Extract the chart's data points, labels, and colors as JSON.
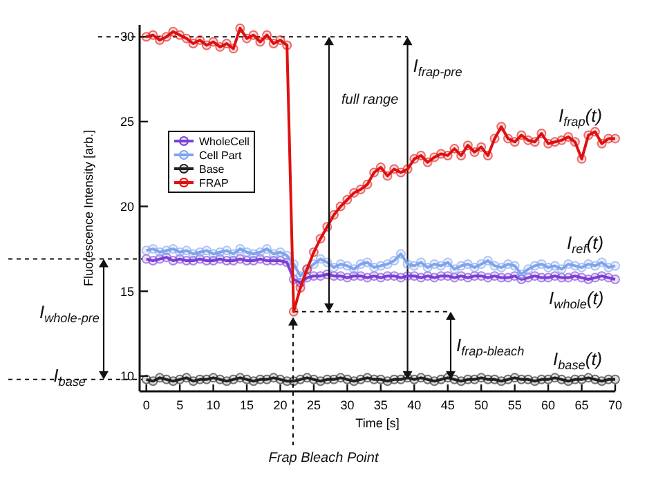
{
  "chart_data": {
    "type": "line",
    "xlabel": "Time [s]",
    "ylabel": "Fluorescence Intensity [arb.]",
    "x": [
      0,
      1,
      2,
      3,
      4,
      5,
      6,
      7,
      8,
      9,
      10,
      11,
      12,
      13,
      14,
      15,
      16,
      17,
      18,
      19,
      20,
      21,
      22,
      23,
      24,
      25,
      26,
      27,
      28,
      29,
      30,
      31,
      32,
      33,
      34,
      35,
      36,
      37,
      38,
      39,
      40,
      41,
      42,
      43,
      44,
      45,
      46,
      47,
      48,
      49,
      50,
      51,
      52,
      53,
      54,
      55,
      56,
      57,
      58,
      59,
      60,
      61,
      62,
      63,
      64,
      65,
      66,
      67,
      68,
      69,
      70
    ],
    "xlim": [
      -1,
      70
    ],
    "xticks": [
      0,
      5,
      10,
      15,
      20,
      25,
      30,
      35,
      40,
      45,
      50,
      55,
      60,
      65,
      70
    ],
    "ylim": [
      9.1,
      30.7
    ],
    "yticks": [
      10,
      15,
      20,
      25,
      30
    ],
    "series": [
      {
        "name": "WholeCell",
        "color": "#7b3fd6",
        "values": [
          16.9,
          16.8,
          16.9,
          17.0,
          16.8,
          16.9,
          16.8,
          16.8,
          16.9,
          16.8,
          16.8,
          16.9,
          16.8,
          16.8,
          16.9,
          16.8,
          16.8,
          16.9,
          16.8,
          16.8,
          16.8,
          16.7,
          15.7,
          15.5,
          15.8,
          15.9,
          15.9,
          16.0,
          15.9,
          15.9,
          15.8,
          15.9,
          15.9,
          15.8,
          15.9,
          15.8,
          15.9,
          15.9,
          15.8,
          15.9,
          15.9,
          15.8,
          15.9,
          15.8,
          15.9,
          15.9,
          15.8,
          15.9,
          15.8,
          15.9,
          15.9,
          15.8,
          15.9,
          15.8,
          15.8,
          15.9,
          15.7,
          15.8,
          15.9,
          15.8,
          15.8,
          15.9,
          15.8,
          15.8,
          15.9,
          15.8,
          15.7,
          15.8,
          15.9,
          15.8,
          15.7
        ]
      },
      {
        "name": "Cell Part",
        "color": "#7fa4ee",
        "values": [
          17.4,
          17.5,
          17.3,
          17.4,
          17.5,
          17.3,
          17.4,
          17.2,
          17.3,
          17.4,
          17.2,
          17.3,
          17.4,
          17.2,
          17.5,
          17.3,
          17.2,
          17.3,
          17.5,
          17.2,
          17.3,
          17.1,
          16.6,
          15.9,
          16.3,
          16.6,
          16.9,
          16.7,
          16.4,
          16.6,
          16.5,
          16.3,
          16.6,
          16.7,
          16.4,
          16.5,
          16.6,
          16.8,
          17.2,
          16.6,
          16.5,
          16.7,
          16.4,
          16.6,
          16.5,
          16.7,
          16.3,
          16.5,
          16.6,
          16.4,
          16.6,
          16.8,
          16.5,
          16.4,
          16.6,
          16.5,
          16.0,
          16.3,
          16.5,
          16.6,
          16.4,
          16.5,
          16.3,
          16.6,
          16.5,
          16.4,
          16.6,
          16.5,
          16.7,
          16.4,
          16.5
        ]
      },
      {
        "name": "Base",
        "color": "#222222",
        "values": [
          9.8,
          9.7,
          9.9,
          9.8,
          9.7,
          9.8,
          9.9,
          9.7,
          9.8,
          9.8,
          9.9,
          9.8,
          9.7,
          9.8,
          9.9,
          9.8,
          9.7,
          9.8,
          9.8,
          9.9,
          9.8,
          9.7,
          9.7,
          9.8,
          9.9,
          9.8,
          9.7,
          9.8,
          9.8,
          9.9,
          9.8,
          9.7,
          9.8,
          9.9,
          9.8,
          9.8,
          9.7,
          9.8,
          9.8,
          9.9,
          9.8,
          9.9,
          9.8,
          9.7,
          9.8,
          9.9,
          9.8,
          9.7,
          9.8,
          9.8,
          9.9,
          9.8,
          9.8,
          9.7,
          9.8,
          9.9,
          9.8,
          9.8,
          9.7,
          9.8,
          9.8,
          9.9,
          9.8,
          9.7,
          9.8,
          9.8,
          9.9,
          9.8,
          9.7,
          9.8,
          9.8
        ]
      },
      {
        "name": "FRAP",
        "color": "#e01010",
        "values": [
          30.0,
          30.1,
          29.8,
          30.0,
          30.3,
          30.1,
          29.9,
          29.6,
          29.8,
          29.5,
          29.7,
          29.4,
          29.6,
          29.3,
          30.5,
          29.9,
          30.1,
          29.7,
          30.1,
          29.6,
          29.8,
          29.5,
          13.8,
          15.2,
          16.3,
          17.3,
          18.1,
          18.8,
          19.5,
          20.0,
          20.4,
          20.8,
          21.0,
          21.3,
          22.0,
          22.3,
          21.8,
          22.2,
          22.0,
          22.2,
          22.8,
          23.0,
          22.6,
          22.9,
          23.1,
          23.0,
          23.4,
          23.0,
          23.6,
          23.2,
          23.5,
          23.0,
          24.0,
          24.7,
          24.0,
          23.8,
          24.2,
          23.9,
          23.8,
          24.3,
          23.7,
          23.8,
          23.9,
          24.1,
          23.8,
          22.8,
          24.2,
          24.4,
          23.7,
          24.0,
          24.0
        ]
      }
    ],
    "marker": "circle",
    "legend": "left",
    "annotations": [
      "full range",
      "I$_{frap}$(t)",
      "I$_{ref}$(t)",
      "I$_{whole}$(t)",
      "I$_{frap-bleach}$",
      "I$_{base}$(t)",
      "I$_{whole-pre}$",
      "I$_{base}$",
      "Frap Bleach Point"
    ],
    "ref_lines": [
      {
        "axis": "x",
        "value": 39,
        "label": "I$_{frap-pre}$"
      },
      {
        "axis": "y",
        "value": 13.8
      }
    ]
  }
}
